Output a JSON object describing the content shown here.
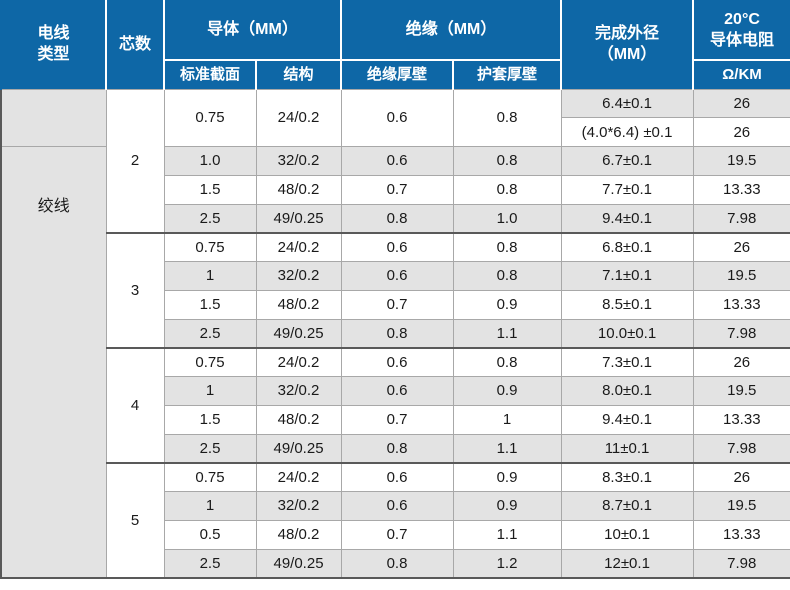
{
  "colors": {
    "header_blue": "#0e67a6",
    "row_gray": "#e3e3e3",
    "border_light": "#a8a8a8",
    "border_dark": "#595959",
    "header_text": "#ffffff",
    "body_text": "#1a1a1a"
  },
  "table": {
    "header": {
      "wire_type_l1": "电线",
      "wire_type_l2": "类型",
      "cores": "芯数",
      "conductor_group": "导体（MM）",
      "standard_section": "标准截面",
      "structure": "结构",
      "insulation_group": "绝缘（MM）",
      "insulation_thickness": "绝缘厚壁",
      "sheath_thickness": "护套厚壁",
      "od_l1": "完成外径",
      "od_l2": "（MM）",
      "resistance_l1": "20°C",
      "resistance_l2": "导体电阻",
      "resistance_unit": "Ω/KM"
    },
    "wire_type_value": "绞线",
    "groups": [
      {
        "cores": "2",
        "rows": [
          {
            "sec": "0.75",
            "str": "24/0.2",
            "ins": "0.6",
            "sh": "0.8",
            "od": "6.4±0.1",
            "res": "26"
          },
          {
            "od": "(4.0*6.4) ±0.1",
            "res": "26"
          },
          {
            "sec": "1.0",
            "str": "32/0.2",
            "ins": "0.6",
            "sh": "0.8",
            "od": "6.7±0.1",
            "res": "19.5"
          },
          {
            "sec": "1.5",
            "str": "48/0.2",
            "ins": "0.7",
            "sh": "0.8",
            "od": "7.7±0.1",
            "res": "13.33"
          },
          {
            "sec": "2.5",
            "str": "49/0.25",
            "ins": "0.8",
            "sh": "1.0",
            "od": "9.4±0.1",
            "res": "7.98"
          }
        ]
      },
      {
        "cores": "3",
        "rows": [
          {
            "sec": "0.75",
            "str": "24/0.2",
            "ins": "0.6",
            "sh": "0.8",
            "od": "6.8±0.1",
            "res": "26"
          },
          {
            "sec": "1",
            "str": "32/0.2",
            "ins": "0.6",
            "sh": "0.8",
            "od": "7.1±0.1",
            "res": "19.5"
          },
          {
            "sec": "1.5",
            "str": "48/0.2",
            "ins": "0.7",
            "sh": "0.9",
            "od": "8.5±0.1",
            "res": "13.33"
          },
          {
            "sec": "2.5",
            "str": "49/0.25",
            "ins": "0.8",
            "sh": "1.1",
            "od": "10.0±0.1",
            "res": "7.98"
          }
        ]
      },
      {
        "cores": "4",
        "rows": [
          {
            "sec": "0.75",
            "str": "24/0.2",
            "ins": "0.6",
            "sh": "0.8",
            "od": "7.3±0.1",
            "res": "26"
          },
          {
            "sec": "1",
            "str": "32/0.2",
            "ins": "0.6",
            "sh": "0.9",
            "od": "8.0±0.1",
            "res": "19.5"
          },
          {
            "sec": "1.5",
            "str": "48/0.2",
            "ins": "0.7",
            "sh": "1",
            "od": "9.4±0.1",
            "res": "13.33"
          },
          {
            "sec": "2.5",
            "str": "49/0.25",
            "ins": "0.8",
            "sh": "1.1",
            "od": "11±0.1",
            "res": "7.98"
          }
        ]
      },
      {
        "cores": "5",
        "rows": [
          {
            "sec": "0.75",
            "str": "24/0.2",
            "ins": "0.6",
            "sh": "0.9",
            "od": "8.3±0.1",
            "res": "26"
          },
          {
            "sec": "1",
            "str": "32/0.2",
            "ins": "0.6",
            "sh": "0.9",
            "od": "8.7±0.1",
            "res": "19.5"
          },
          {
            "sec": "0.5",
            "str": "48/0.2",
            "ins": "0.7",
            "sh": "1.1",
            "od": "10±0.1",
            "res": "13.33"
          },
          {
            "sec": "2.5",
            "str": "49/0.25",
            "ins": "0.8",
            "sh": "1.2",
            "od": "12±0.1",
            "res": "7.98"
          }
        ]
      }
    ]
  }
}
